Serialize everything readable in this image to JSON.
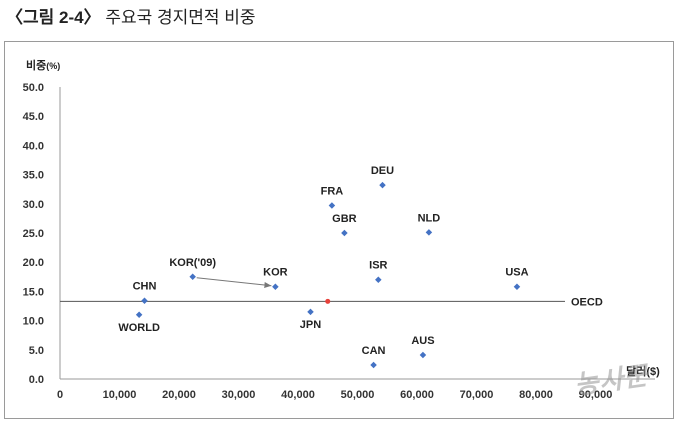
{
  "title": {
    "fig_no": "〈그림 2-4〉",
    "text": "주요국 경지면적 비중"
  },
  "chart_data": {
    "type": "scatter",
    "title": "주요국 경지면적 비중",
    "ylabel": "비중",
    "ylabel_unit": "(%)",
    "xlabel": "달러($)",
    "xlim": [
      0,
      100000
    ],
    "ylim": [
      0,
      50
    ],
    "x_ticks": [
      "0",
      "10,000",
      "20,000",
      "30,000",
      "40,000",
      "50,000",
      "60,000",
      "70,000",
      "80,000",
      "90,000"
    ],
    "y_ticks": [
      "0.0",
      "5.0",
      "10.0",
      "15.0",
      "20.0",
      "25.0",
      "30.0",
      "35.0",
      "40.0",
      "45.0",
      "50.0"
    ],
    "point_color": "#4472c4",
    "reference_color": "#e8413a",
    "points": [
      {
        "label": "CHN",
        "x": 14200,
        "y": 13.4
      },
      {
        "label": "WORLD",
        "x": 13300,
        "y": 11.0
      },
      {
        "label": "KOR('09)",
        "x": 22300,
        "y": 17.5
      },
      {
        "label": "KOR",
        "x": 36200,
        "y": 15.8
      },
      {
        "label": "JPN",
        "x": 42100,
        "y": 11.5
      },
      {
        "label": "FRA",
        "x": 45700,
        "y": 29.7
      },
      {
        "label": "GBR",
        "x": 47800,
        "y": 25.0
      },
      {
        "label": "DEU",
        "x": 54200,
        "y": 33.2
      },
      {
        "label": "ISR",
        "x": 53500,
        "y": 17.0
      },
      {
        "label": "CAN",
        "x": 52700,
        "y": 2.4
      },
      {
        "label": "NLD",
        "x": 62000,
        "y": 25.1
      },
      {
        "label": "AUS",
        "x": 61000,
        "y": 4.1
      },
      {
        "label": "USA",
        "x": 76800,
        "y": 15.8
      }
    ],
    "arrow": {
      "from": "KOR('09)",
      "to": "KOR"
    },
    "reference_line": {
      "label": "OECD",
      "y": 13.3,
      "marker_x": 45000
    }
  },
  "watermark": "농사꾼"
}
